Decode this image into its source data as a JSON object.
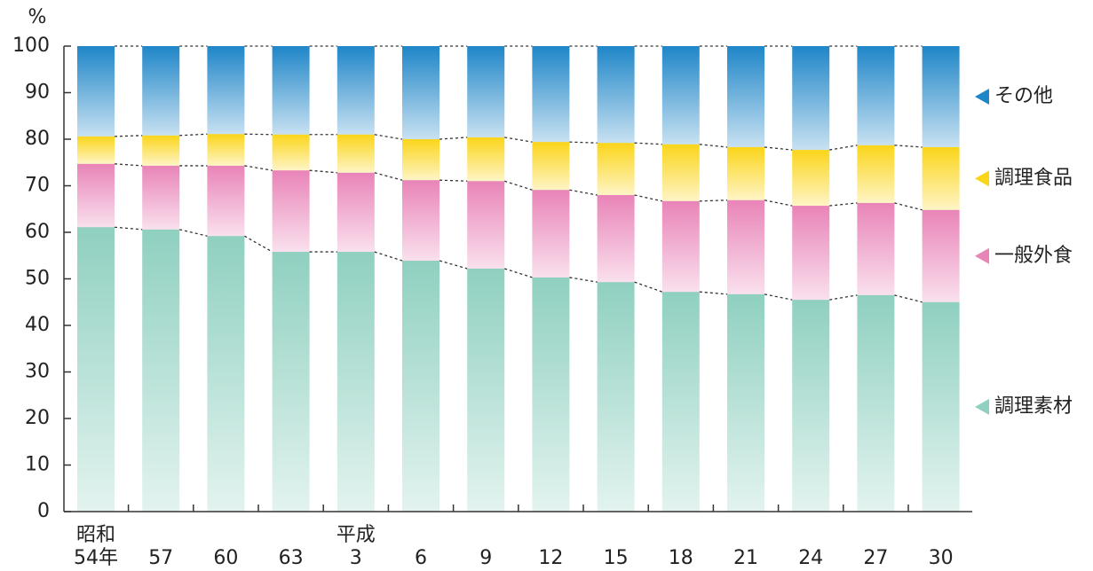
{
  "chart_data": {
    "type": "stacked_bar",
    "y_unit": "%",
    "categories": [
      "54年",
      "57",
      "60",
      "63",
      "3",
      "6",
      "9",
      "12",
      "15",
      "18",
      "21",
      "24",
      "27",
      "30"
    ],
    "era_labels": [
      "昭和",
      null,
      null,
      null,
      "平成",
      null,
      null,
      null,
      null,
      null,
      null,
      null,
      null,
      null
    ],
    "series": [
      {
        "name": "調理素材",
        "color": "#8fd0c0",
        "values": [
          61.1,
          60.6,
          59.2,
          55.8,
          55.8,
          53.9,
          52.2,
          50.3,
          49.3,
          47.2,
          46.7,
          45.5,
          46.5,
          45.0
        ]
      },
      {
        "name": "一般外食",
        "color": "#e984b8",
        "values": [
          13.6,
          13.7,
          15.1,
          17.5,
          17.0,
          17.3,
          18.8,
          18.8,
          18.7,
          19.5,
          20.2,
          20.2,
          19.8,
          19.8
        ]
      },
      {
        "name": "調理食品",
        "color": "#fbd51a",
        "values": [
          5.9,
          6.5,
          6.8,
          7.7,
          8.2,
          8.8,
          9.4,
          10.3,
          11.2,
          12.2,
          11.4,
          12.0,
          12.4,
          13.5
        ]
      },
      {
        "name": "その他",
        "color": "#1f86c8",
        "values": [
          19.4,
          19.2,
          18.9,
          19.0,
          19.0,
          20.0,
          19.6,
          20.6,
          20.8,
          21.1,
          21.7,
          22.3,
          21.3,
          21.7
        ]
      }
    ],
    "ylim": [
      0,
      100
    ],
    "yticks": [
      0,
      10,
      20,
      30,
      40,
      50,
      60,
      70,
      80,
      90,
      100
    ]
  }
}
